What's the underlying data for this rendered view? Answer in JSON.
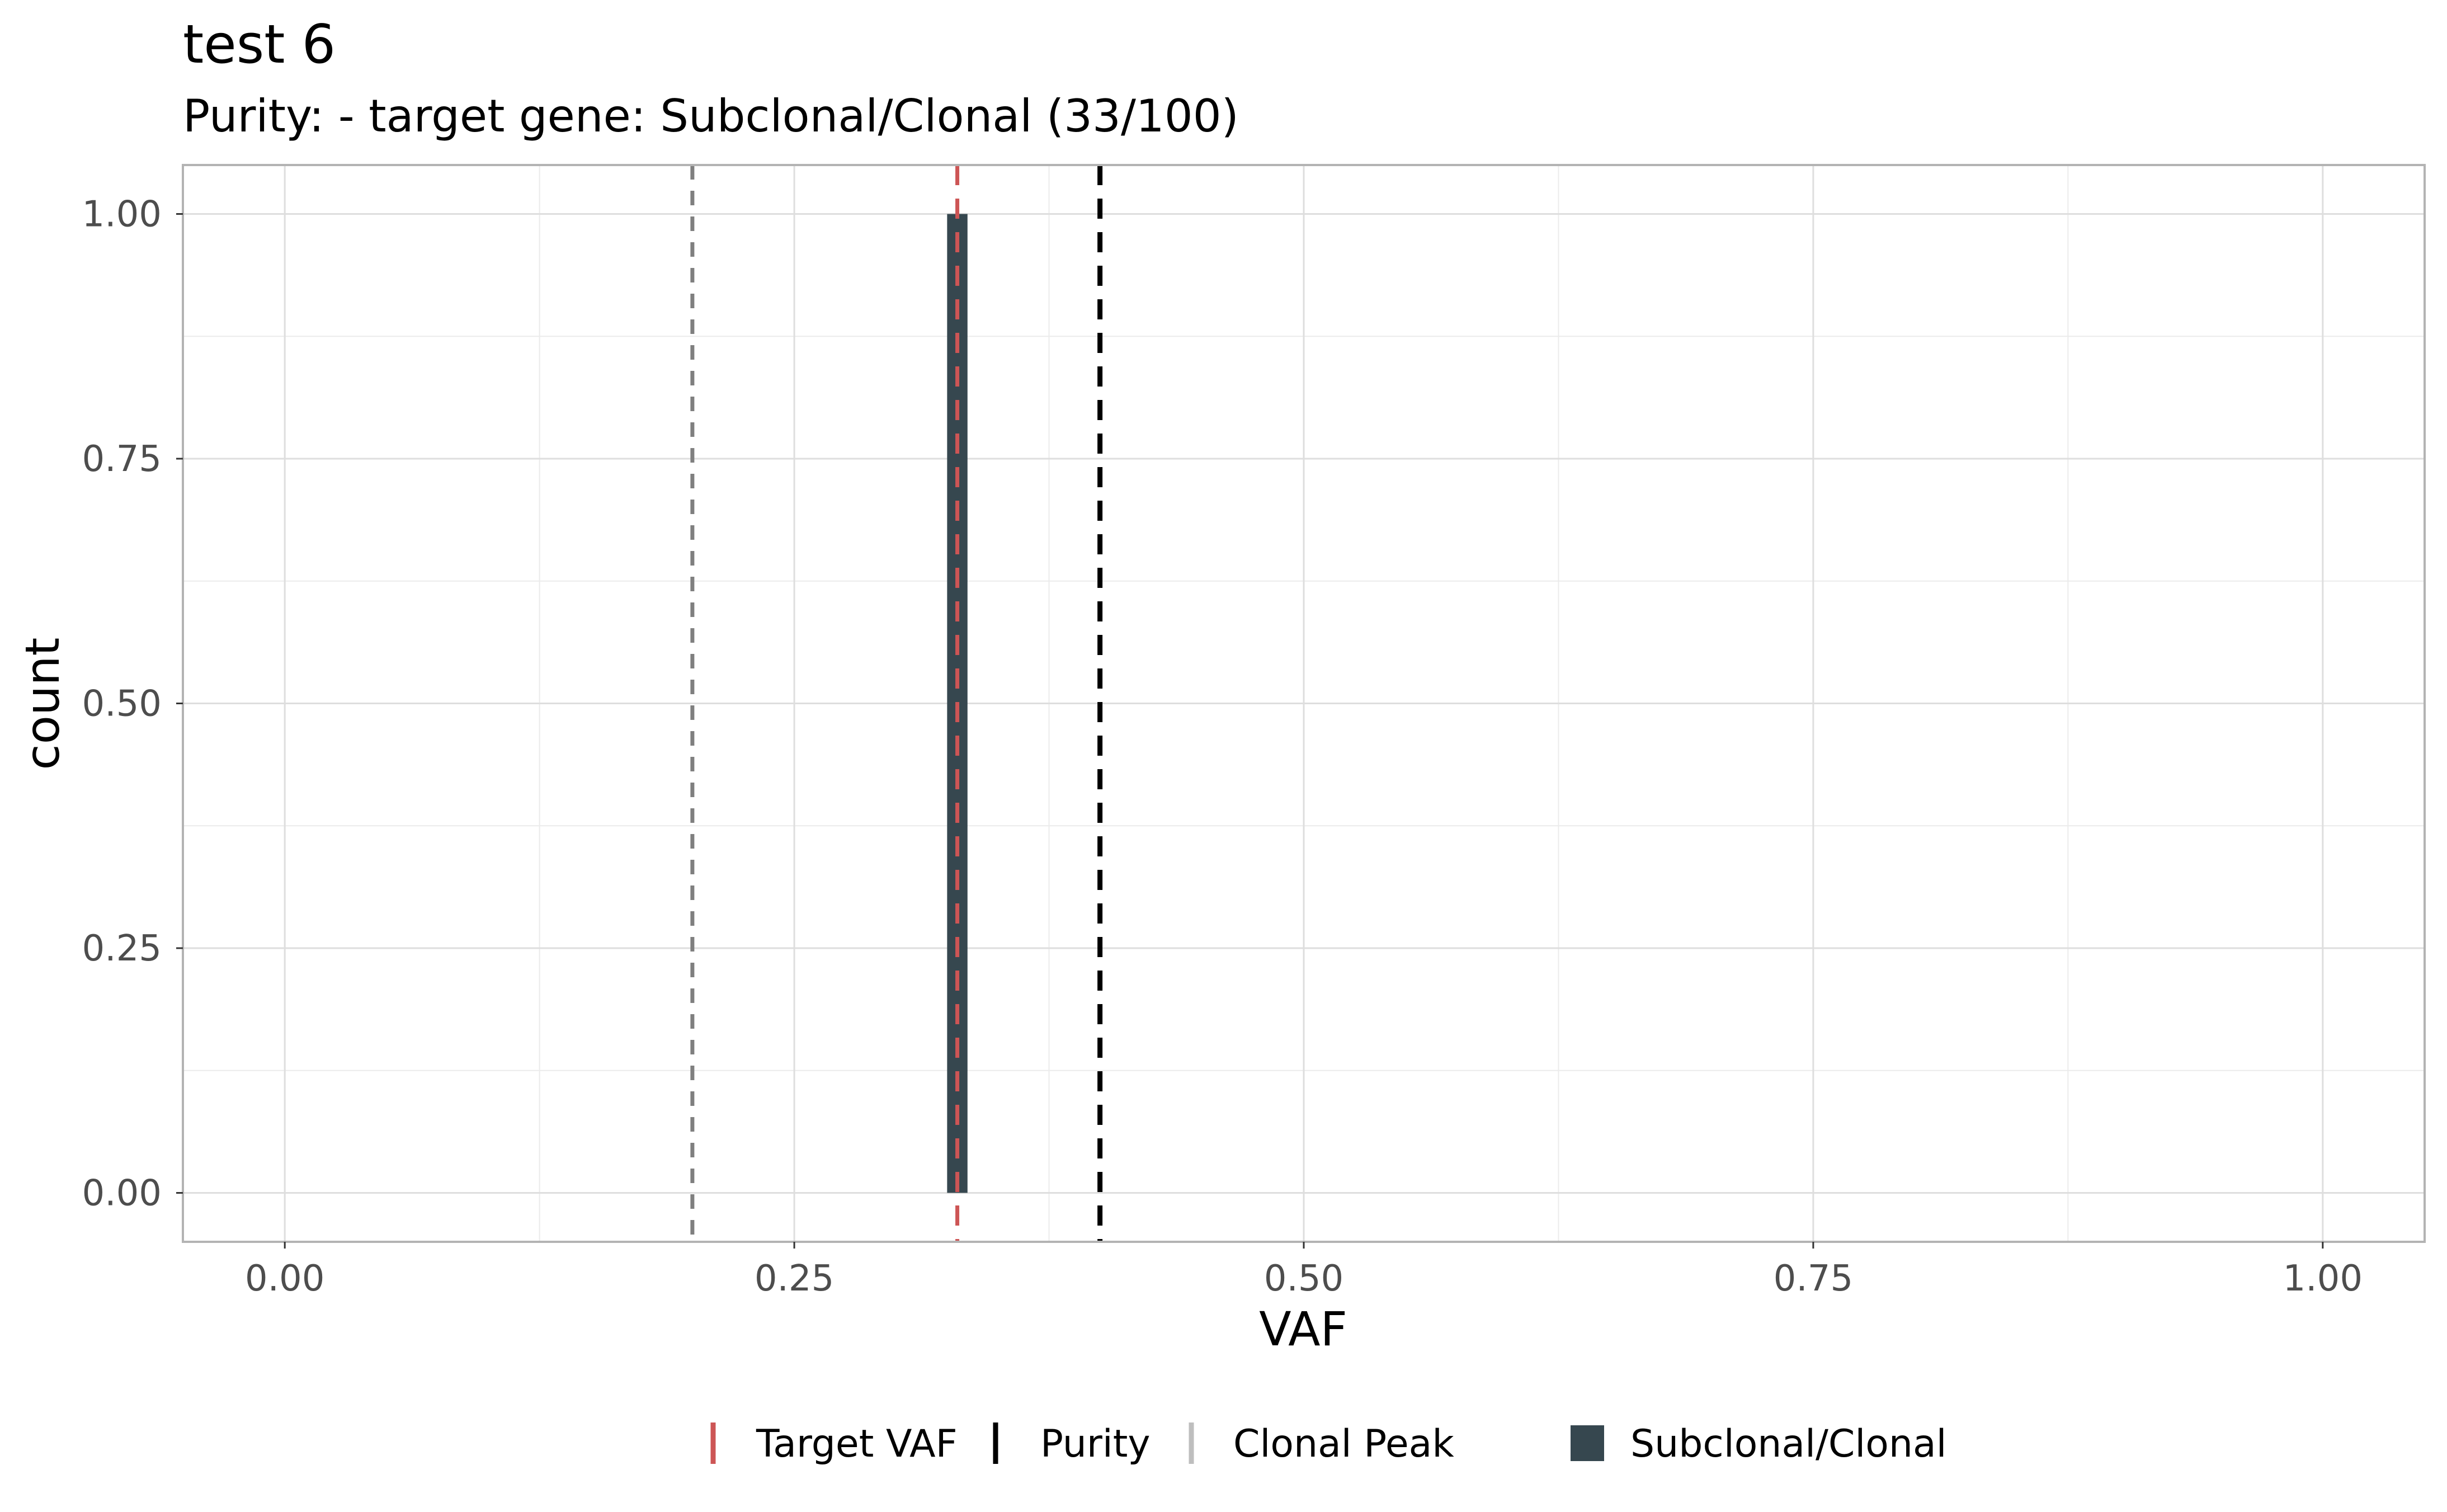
{
  "chart_data": {
    "type": "bar",
    "title": "test 6",
    "subtitle": "Purity:  - target gene: Subclonal/Clonal (33/100)",
    "xlabel": "VAF",
    "ylabel": "count",
    "xlim": [
      -0.05,
      1.05
    ],
    "ylim": [
      -0.05,
      1.05
    ],
    "x_ticks": [
      0,
      0.25,
      0.5,
      0.75,
      1
    ],
    "x_tick_labels": [
      "0.00",
      "0.25",
      "0.50",
      "0.75",
      "1.00"
    ],
    "y_ticks": [
      0,
      0.25,
      0.5,
      0.75,
      1
    ],
    "y_tick_labels": [
      "0.00",
      "0.25",
      "0.50",
      "0.75",
      "1.00"
    ],
    "grid": true,
    "bars": [
      {
        "series": "Subclonal/Clonal",
        "x": 0.33,
        "width": 0.01,
        "count": 1
      }
    ],
    "reference_lines": [
      {
        "name": "Target VAF",
        "x": 0.33,
        "color": "#cd5555",
        "style": "dashed"
      },
      {
        "name": "Purity",
        "x": 0.4,
        "color": "#000000",
        "style": "dashed"
      },
      {
        "name": "Clonal Peak",
        "x": 0.2,
        "color": "#7f7f7f",
        "style": "dashed"
      }
    ],
    "legend": {
      "position": "bottom",
      "lines": [
        {
          "label": "Target VAF",
          "color": "#cd5555"
        },
        {
          "label": "Purity",
          "color": "#000000"
        },
        {
          "label": "Clonal Peak",
          "color": "#bebebe"
        }
      ],
      "fill": [
        {
          "label": "Subclonal/Clonal",
          "color": "#36474f"
        }
      ]
    }
  }
}
